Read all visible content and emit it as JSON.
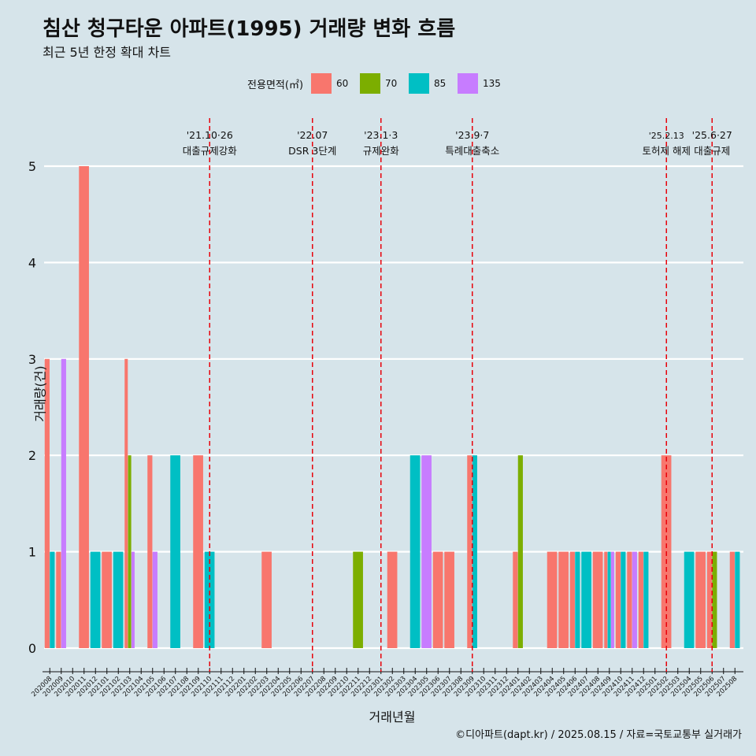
{
  "title": "침산 청구타운 아파트(1995) 거래량 변화 흐름",
  "subtitle": "최근 5년 한정 확대 차트",
  "caption": "©디아파트(dapt.kr) / 2025.08.15 / 자료=국토교통부 실거래가",
  "legend": {
    "title": "전용면적(㎡)",
    "items": [
      {
        "label": "60",
        "color": "#F8766D"
      },
      {
        "label": "70",
        "color": "#7CAE00"
      },
      {
        "label": "85",
        "color": "#00BFC4"
      },
      {
        "label": "135",
        "color": "#C77CFF"
      }
    ]
  },
  "chart_data": {
    "type": "bar",
    "xlabel": "거래년월",
    "ylabel": "거래량(건)",
    "ylim": [
      0,
      5
    ],
    "yticks": [
      0,
      1,
      2,
      3,
      4,
      5
    ],
    "categories": [
      "202008",
      "202009",
      "202010",
      "202011",
      "202012",
      "202101",
      "202102",
      "202103",
      "202104",
      "202105",
      "202106",
      "202107",
      "202108",
      "202109",
      "202110",
      "202111",
      "202112",
      "202201",
      "202202",
      "202203",
      "202204",
      "202205",
      "202206",
      "202207",
      "202208",
      "202209",
      "202210",
      "202211",
      "202212",
      "202301",
      "202302",
      "202303",
      "202304",
      "202305",
      "202306",
      "202307",
      "202308",
      "202309",
      "202310",
      "202311",
      "202312",
      "202401",
      "202402",
      "202403",
      "202404",
      "202405",
      "202406",
      "202407",
      "202408",
      "202409",
      "202410",
      "202411",
      "202412",
      "202501",
      "202502",
      "202503",
      "202504",
      "202505",
      "202506",
      "202507",
      "202508"
    ],
    "series": [
      {
        "name": "60",
        "color": "#F8766D",
        "points": [
          [
            "202008",
            3
          ],
          [
            "202009",
            1
          ],
          [
            "202011",
            5
          ],
          [
            "202101",
            1
          ],
          [
            "202103",
            3
          ],
          [
            "202105",
            2
          ],
          [
            "202109",
            2
          ],
          [
            "202203",
            1
          ],
          [
            "202302",
            1
          ],
          [
            "202306",
            1
          ],
          [
            "202307",
            1
          ],
          [
            "202309",
            2
          ],
          [
            "202401",
            1
          ],
          [
            "202404",
            1
          ],
          [
            "202405",
            1
          ],
          [
            "202406",
            1
          ],
          [
            "202408",
            1
          ],
          [
            "202409",
            1
          ],
          [
            "202410",
            1
          ],
          [
            "202411",
            1
          ],
          [
            "202412",
            1
          ],
          [
            "202502",
            2
          ],
          [
            "202505",
            1
          ],
          [
            "202506",
            1
          ],
          [
            "202508",
            1
          ]
        ]
      },
      {
        "name": "70",
        "color": "#7CAE00",
        "points": [
          [
            "202103",
            2
          ],
          [
            "202211",
            1
          ],
          [
            "202401",
            2
          ],
          [
            "202506",
            1
          ]
        ]
      },
      {
        "name": "85",
        "color": "#00BFC4",
        "points": [
          [
            "202008",
            1
          ],
          [
            "202012",
            1
          ],
          [
            "202102",
            1
          ],
          [
            "202107",
            2
          ],
          [
            "202110",
            1
          ],
          [
            "202304",
            2
          ],
          [
            "202309",
            2
          ],
          [
            "202406",
            1
          ],
          [
            "202407",
            1
          ],
          [
            "202409",
            1
          ],
          [
            "202410",
            1
          ],
          [
            "202412",
            1
          ],
          [
            "202504",
            1
          ],
          [
            "202508",
            1
          ]
        ]
      },
      {
        "name": "135",
        "color": "#C77CFF",
        "points": [
          [
            "202009",
            3
          ],
          [
            "202103",
            1
          ],
          [
            "202105",
            1
          ],
          [
            "202305",
            2
          ],
          [
            "202409",
            1
          ],
          [
            "202411",
            1
          ]
        ]
      }
    ],
    "annotations": [
      {
        "x": "202110",
        "date": "'21.10·26",
        "label": "대출규제강화"
      },
      {
        "x": "202207",
        "date": "'22.07",
        "label": "DSR 3단계"
      },
      {
        "x": "202301",
        "date": "'23.1·3",
        "label": "규제완화"
      },
      {
        "x": "202309",
        "date": "'23.9·7",
        "label": "특례대출축소"
      },
      {
        "x": "202502",
        "date": "'25.2.13",
        "label": "토허제 해제"
      },
      {
        "x": "202506",
        "date": "'25.6·27",
        "label": "대출규제"
      }
    ]
  }
}
